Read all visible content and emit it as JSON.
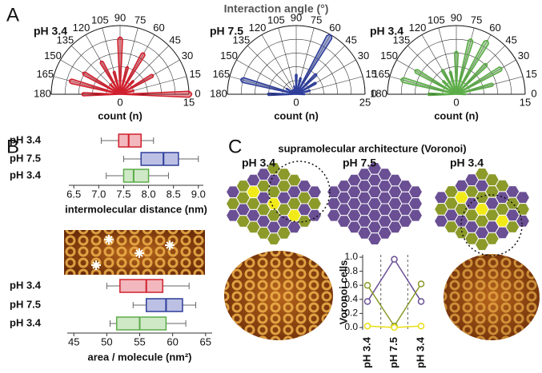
{
  "panel_labels": [
    "A",
    "B",
    "C"
  ],
  "chart_data": [
    {
      "type": "rose",
      "title": "Interaction angle (°)",
      "label": "pH 3.4",
      "color": "#d0202e",
      "angles": [
        0,
        15,
        30,
        45,
        60,
        75,
        90,
        105,
        120,
        135,
        150,
        165,
        180
      ],
      "values": [
        15,
        3,
        8,
        4,
        10,
        6,
        12,
        5,
        8,
        3,
        9,
        11,
        8
      ],
      "rlim": [
        0,
        15
      ],
      "rticks": [
        0,
        15
      ],
      "angle_ticks": [
        0,
        15,
        30,
        45,
        60,
        75,
        90,
        105,
        120,
        135,
        150,
        165,
        180
      ],
      "xlabel": "count (n)"
    },
    {
      "type": "rose",
      "label": "pH 7.5",
      "color": "#2e3e9a",
      "angles": [
        0,
        15,
        30,
        45,
        60,
        75,
        90,
        105,
        120,
        135,
        150,
        165,
        180
      ],
      "values": [
        3,
        5,
        8,
        10,
        24,
        6,
        7,
        3,
        2,
        2,
        4,
        20,
        10
      ],
      "rlim": [
        0,
        25
      ],
      "rticks": [
        0,
        25
      ],
      "angle_ticks": [
        0,
        15,
        30,
        45,
        60,
        75,
        90,
        105,
        120,
        135,
        150,
        165,
        180
      ],
      "xlabel": "count (n)"
    },
    {
      "type": "rose",
      "label": "pH 3.4",
      "color": "#5cac48",
      "angles": [
        0,
        15,
        30,
        45,
        60,
        75,
        90,
        105,
        120,
        135,
        150,
        165,
        180
      ],
      "values": [
        2,
        8,
        11,
        9,
        13,
        12,
        9,
        5,
        6,
        4,
        10,
        12,
        6
      ],
      "rlim": [
        0,
        15
      ],
      "rticks": [
        0,
        15
      ],
      "angle_ticks": [
        0,
        15,
        30,
        45,
        60,
        75,
        90,
        105,
        120,
        135,
        150,
        165,
        180
      ],
      "xlabel": "count (n)"
    },
    {
      "type": "box",
      "xlabel": "intermolecular distance (nm)",
      "series": [
        {
          "name": "pH 3.4",
          "color": "#d0202e",
          "fill": "#f2b8bd",
          "min": 7.05,
          "q1": 7.4,
          "median": 7.6,
          "q3": 7.85,
          "max": 8.1
        },
        {
          "name": "pH 7.5",
          "color": "#2e3e9a",
          "fill": "#bcc0e4",
          "min": 7.5,
          "q1": 7.85,
          "median": 8.3,
          "q3": 8.6,
          "max": 9.0
        },
        {
          "name": "pH 3.4",
          "color": "#5cac48",
          "fill": "#cfe8c6",
          "min": 7.15,
          "q1": 7.5,
          "median": 7.7,
          "q3": 8.0,
          "max": 8.4
        }
      ],
      "xlim": [
        6.4,
        9.1
      ],
      "xticks": [
        {
          "value": 6.5,
          "label": "6.5"
        },
        {
          "value": 7,
          "label": "7.0"
        },
        {
          "value": 7.5,
          "label": "7.5"
        },
        {
          "value": 8,
          "label": "8.0"
        },
        {
          "value": 8.5,
          "label": "8.5"
        },
        {
          "value": 9,
          "label": "9.0"
        }
      ]
    },
    {
      "type": "box",
      "xlabel": "area / molecule (nm²)",
      "series": [
        {
          "name": "pH 3.4",
          "color": "#d0202e",
          "fill": "#f2b8bd",
          "min": 50,
          "q1": 52,
          "median": 56,
          "q3": 58.5,
          "max": 62.5
        },
        {
          "name": "pH 7.5",
          "color": "#2e3e9a",
          "fill": "#bcc0e4",
          "min": 54,
          "q1": 56,
          "median": 59,
          "q3": 61.5,
          "max": 63.5
        },
        {
          "name": "pH 3.4",
          "color": "#5cac48",
          "fill": "#cfe8c6",
          "min": 50.5,
          "q1": 51.5,
          "median": 55,
          "q3": 59,
          "max": 62
        }
      ],
      "xlim": [
        44,
        66
      ],
      "xticks": [
        45,
        50,
        55,
        60,
        65
      ]
    },
    {
      "type": "mosaic",
      "title": "supramolecular architecture (Voronoi)",
      "labels": [
        {
          "text": "pH 3.4",
          "color": "#d0202e"
        },
        {
          "text": "pH 7.5",
          "color": "#2e3e9a"
        },
        {
          "text": "pH 3.4",
          "color": "#5cac48"
        }
      ]
    },
    {
      "type": "line",
      "ylabel": "Voronoi cells",
      "categories": [
        "pH 3.4",
        "pH 7.5",
        "pH 3.4"
      ],
      "category_colors": [
        "#d0202e",
        "#2e3e9a",
        "#5cac48"
      ],
      "series": [
        {
          "color": "#6a4f94",
          "values": [
            0.37,
            0.97,
            0.37
          ]
        },
        {
          "color": "#8c9a2a",
          "values": [
            0.6,
            0.02,
            0.62
          ]
        },
        {
          "color": "#e8de10",
          "values": [
            0.02,
            0.0,
            0.02
          ]
        }
      ],
      "ylim": [
        0,
        1
      ],
      "yticks": [
        {
          "value": 0,
          "label": "0.0"
        },
        {
          "value": 0.2,
          "label": "0.2"
        },
        {
          "value": 0.4,
          "label": "0.4"
        },
        {
          "value": 0.6,
          "label": "0.6"
        },
        {
          "value": 0.8,
          "label": "0.8"
        },
        {
          "value": 1,
          "label": "1.0"
        }
      ]
    }
  ]
}
